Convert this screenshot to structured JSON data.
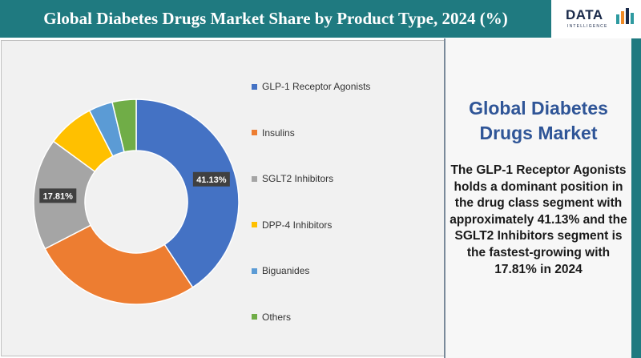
{
  "header": {
    "title": "Global Diabetes Drugs Market Share by Product Type, 2024 (%)"
  },
  "logo": {
    "text": "DATA",
    "subtext": "INTELLIGENCE"
  },
  "side_panel": {
    "title": "Global Diabetes Drugs Market",
    "body": "The GLP-1 Receptor Agonists holds a dominant position in the drug class segment with approximately 41.13% and the SGLT2 Inhibitors segment is the fastest-growing with 17.81%  in 2024"
  },
  "colors": {
    "header": "#1f7a80",
    "accent_title": "#2f5597"
  },
  "chart_data": {
    "type": "pie",
    "donut": true,
    "categories": [
      "GLP-1 Receptor Agonists",
      "Insulins",
      "SGLT2 Inhibitors",
      "DPP-4 Inhibitors",
      "Biguanides",
      "Others"
    ],
    "values": [
      41.13,
      27.0,
      17.81,
      7.5,
      3.8,
      3.8
    ],
    "colors": [
      "#4472c4",
      "#ed7d31",
      "#a5a5a5",
      "#ffc000",
      "#5b9bd5",
      "#70ad47"
    ],
    "data_labels": [
      "41.13%",
      "",
      "17.81%",
      "",
      "",
      ""
    ],
    "legend_position": "right"
  }
}
